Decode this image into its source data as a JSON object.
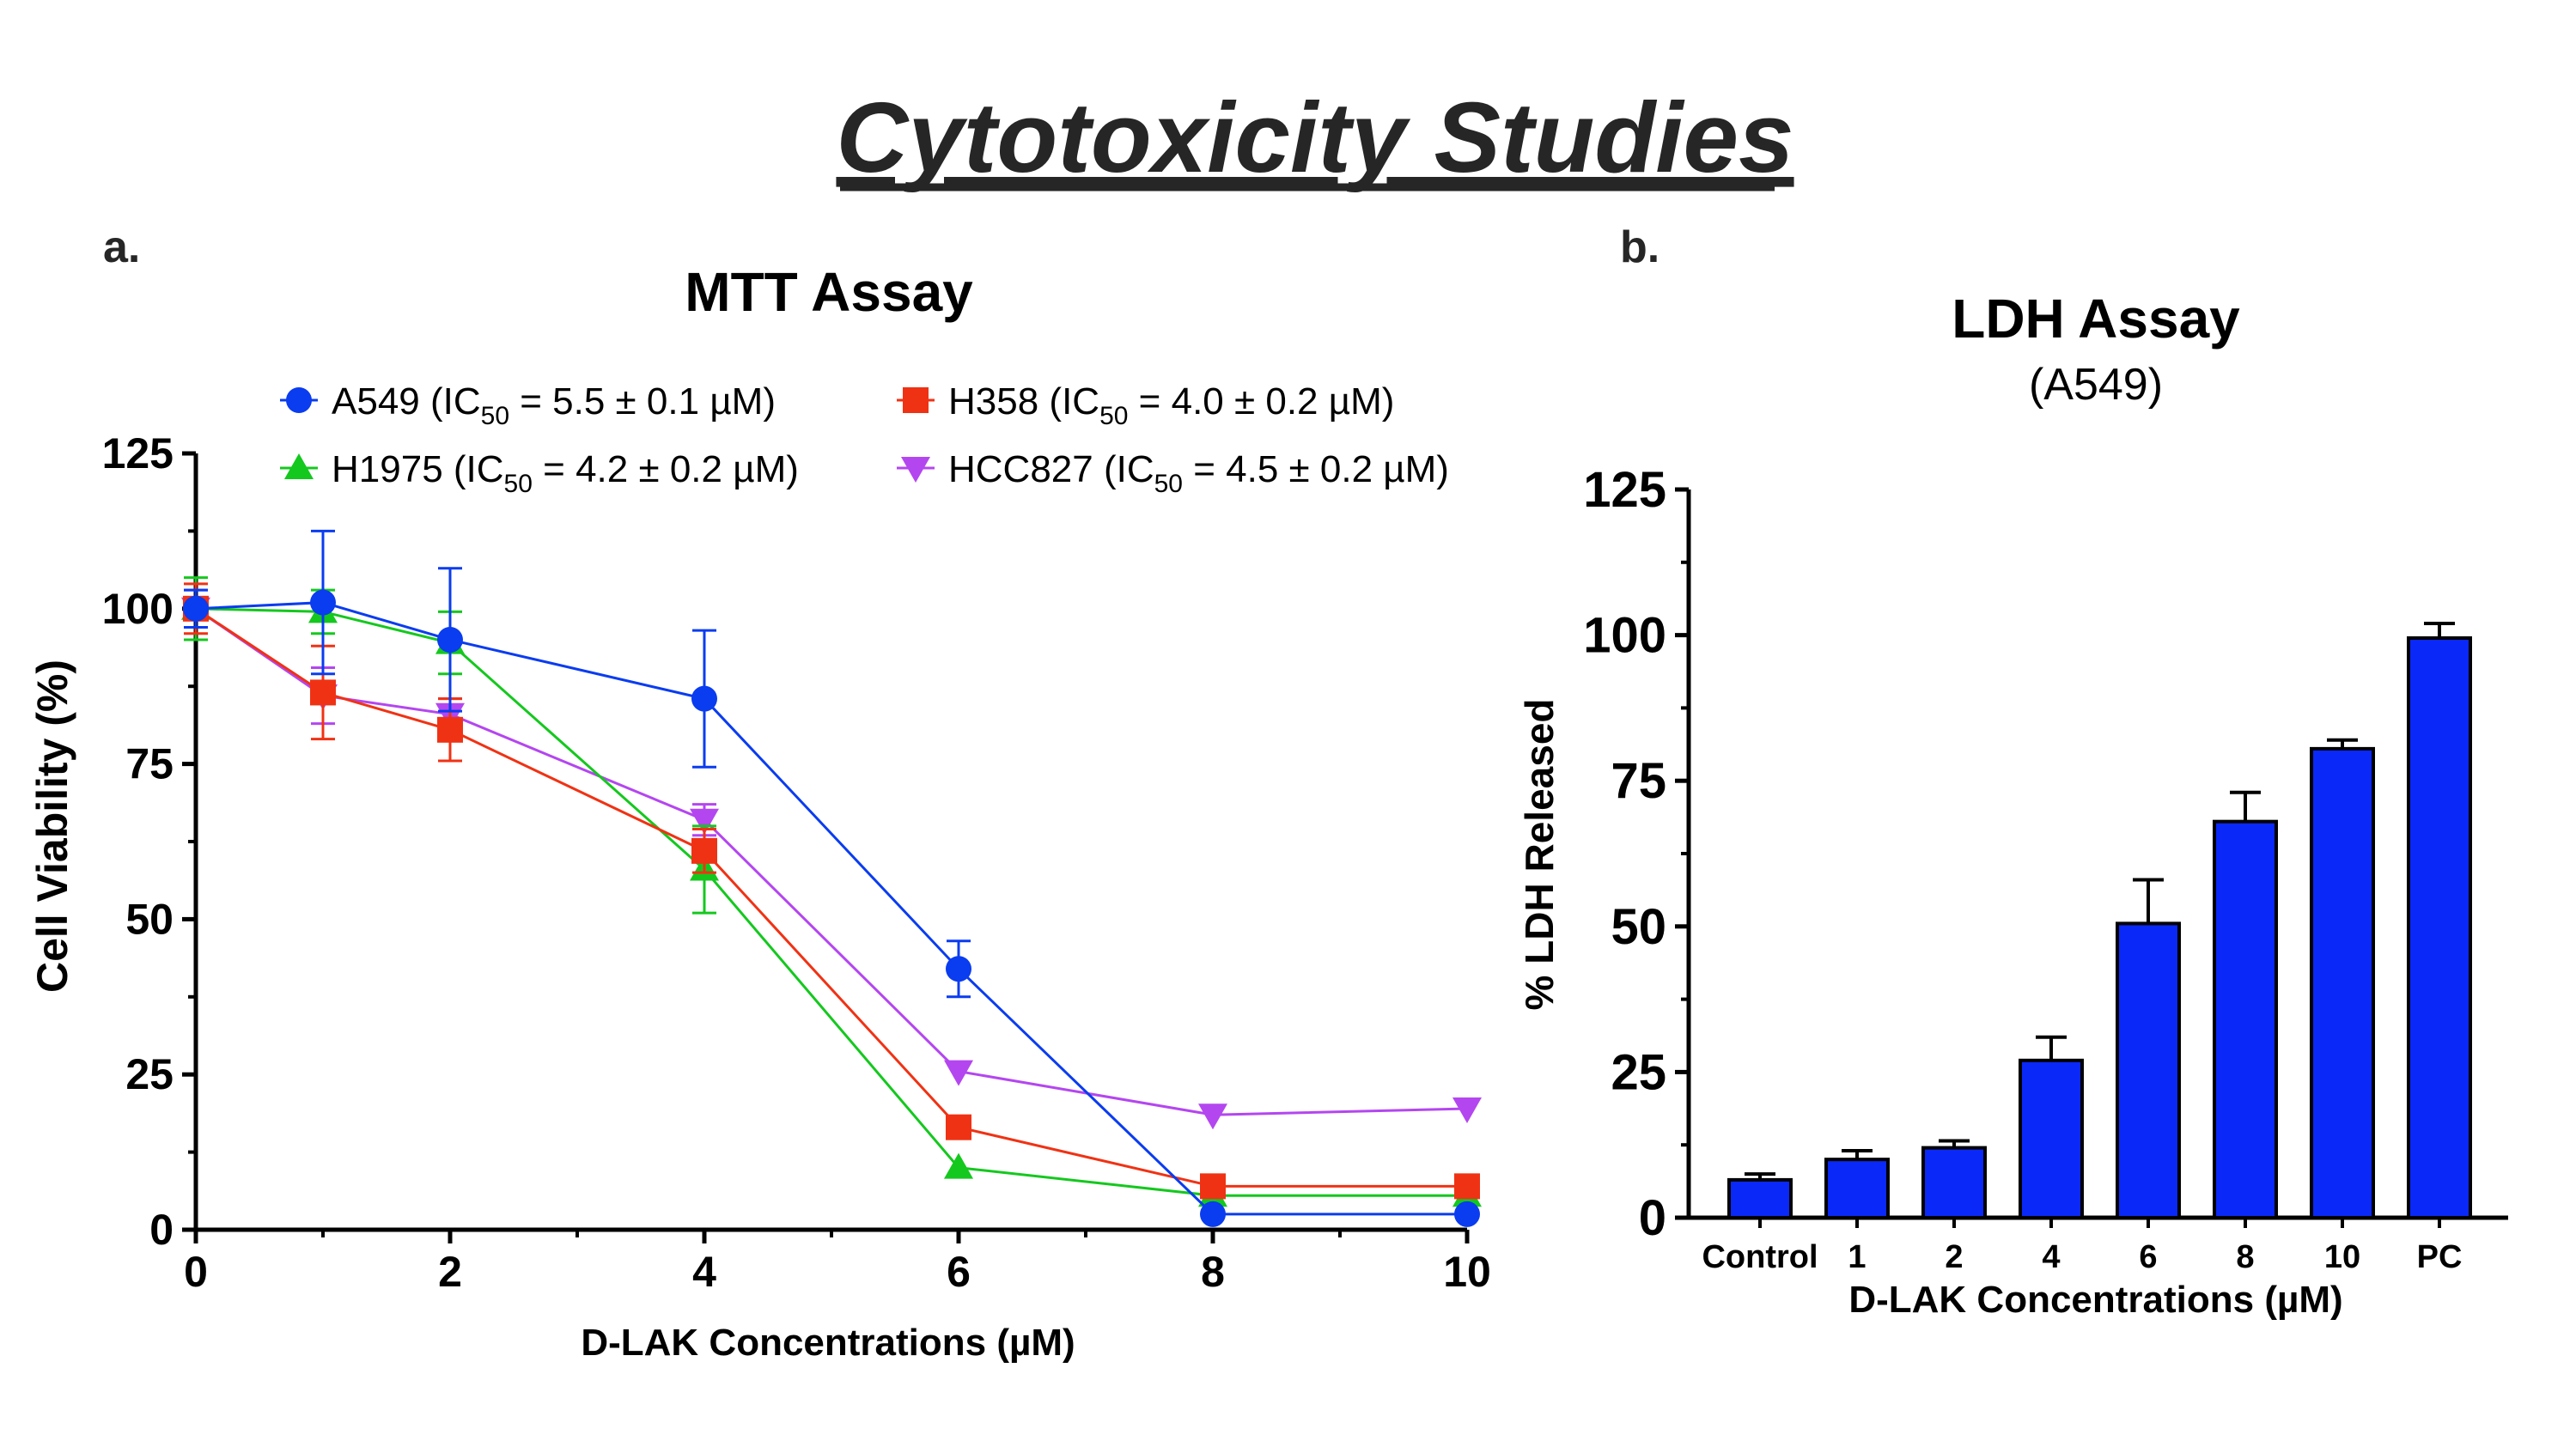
{
  "page": {
    "title": "Cytotoxicity Studies",
    "panel_a_label": "a.",
    "panel_b_label": "b."
  },
  "chart_data": [
    {
      "type": "line",
      "title": "MTT Assay",
      "xlabel": "D-LAK Concentrations (µM)",
      "ylabel": "Cell Viability (%)",
      "xlim": [
        0,
        10
      ],
      "ylim": [
        0,
        125
      ],
      "xticks": [
        "0",
        "2",
        "4",
        "6",
        "8",
        "10"
      ],
      "yticks": [
        "0",
        "25",
        "50",
        "75",
        "100",
        "125"
      ],
      "legend_position": "top",
      "series": [
        {
          "name": "A549 (IC50 = 5.5 ± 0.1 µM)",
          "legend": {
            "prefix": "A549 (IC",
            "sub": "50",
            "suffix": " = 5.5 ± 0.1 µM)"
          },
          "color": "#0a3cf0",
          "marker": "circle",
          "x": [
            0,
            1,
            2,
            4,
            6,
            8,
            10
          ],
          "y": [
            100,
            101,
            95,
            85.5,
            42,
            2.5,
            2.5
          ],
          "err": [
            3,
            11.5,
            11.5,
            11,
            4.5,
            0.5,
            0.5
          ]
        },
        {
          "name": "H358 (IC50 = 4.0 ± 0.2 µM)",
          "legend": {
            "prefix": "H358 (IC",
            "sub": "50",
            "suffix": " = 4.0 ± 0.2 µM)"
          },
          "color": "#f03214",
          "marker": "square",
          "x": [
            0,
            1,
            2,
            4,
            6,
            8,
            10
          ],
          "y": [
            100,
            86.5,
            80.5,
            61,
            16.5,
            7,
            7
          ],
          "err": [
            4,
            7.5,
            5,
            3.5,
            1,
            0.5,
            0.5
          ]
        },
        {
          "name": "H1975 (IC50 = 4.2 ± 0.2 µM)",
          "legend": {
            "prefix": "H1975 (IC",
            "sub": "50",
            "suffix": " = 4.2 ± 0.2 µM)"
          },
          "color": "#14c81e",
          "marker": "triangle-up",
          "x": [
            0,
            1,
            2,
            4,
            6,
            8,
            10
          ],
          "y": [
            100,
            99.5,
            94.5,
            58,
            10,
            5.5,
            5.5
          ],
          "err": [
            5,
            3.5,
            5,
            7,
            0.5,
            0.5,
            0.5
          ]
        },
        {
          "name": "HCC827 (IC50 = 4.5 ± 0.2 µM)",
          "legend": {
            "prefix": "HCC827 (IC",
            "sub": "50",
            "suffix": " = 4.5 ± 0.2 µM)"
          },
          "color": "#b446f0",
          "marker": "triangle-down",
          "x": [
            0,
            1,
            2,
            4,
            6,
            8,
            10
          ],
          "y": [
            100,
            86,
            83,
            66,
            25.5,
            18.5,
            19.5
          ],
          "err": [
            3,
            4.5,
            2.5,
            2.5,
            1,
            1,
            1
          ]
        }
      ]
    },
    {
      "type": "bar",
      "title": "LDH Assay",
      "subtitle": "(A549)",
      "xlabel": "D-LAK Concentrations (µM)",
      "ylabel": "% LDH Released",
      "ylim": [
        0,
        125
      ],
      "yticks": [
        "0",
        "25",
        "50",
        "75",
        "100",
        "125"
      ],
      "categories": [
        "Control",
        "1",
        "2",
        "4",
        "6",
        "8",
        "10",
        "PC"
      ],
      "values": [
        6.5,
        10,
        12,
        27,
        50.5,
        68,
        80.5,
        99.5
      ],
      "err": [
        1,
        1.5,
        1.2,
        4,
        7.5,
        5,
        1.5,
        2.5
      ],
      "color": "#0a28f8"
    }
  ]
}
